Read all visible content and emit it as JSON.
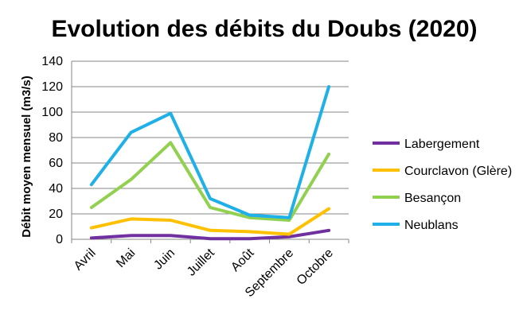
{
  "chart_data": {
    "type": "line",
    "title": "Evolution des débits du Doubs (2020)",
    "xlabel": "",
    "ylabel": "Débit moyen mensuel (m3/s)",
    "categories": [
      "Avril",
      "Mai",
      "Juin",
      "Juillet",
      "Août",
      "Septembre",
      "Octobre"
    ],
    "ylim": [
      0,
      140
    ],
    "yticks": [
      0,
      20,
      40,
      60,
      80,
      100,
      120,
      140
    ],
    "grid": true,
    "legend_position": "right",
    "series": [
      {
        "name": "Labergement",
        "color": "#7030A0",
        "values": [
          1,
          3,
          3,
          0.5,
          0.5,
          2,
          7
        ]
      },
      {
        "name": "Courclavon (Glère)",
        "color": "#FFC000",
        "values": [
          9,
          16,
          15,
          7,
          6,
          4,
          24
        ]
      },
      {
        "name": "Besançon",
        "color": "#92D050",
        "values": [
          25,
          47,
          76,
          25,
          17,
          15,
          67
        ]
      },
      {
        "name": "Neublans",
        "color": "#1FB0E8",
        "values": [
          43,
          84,
          99,
          32,
          19,
          17,
          120
        ]
      }
    ]
  }
}
